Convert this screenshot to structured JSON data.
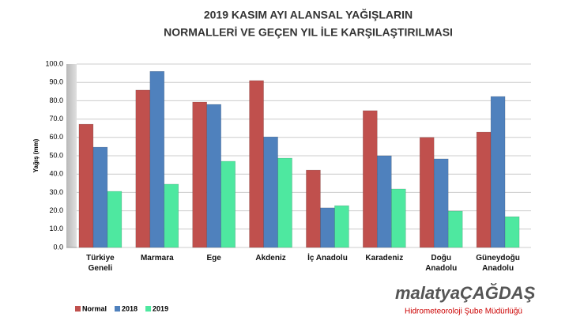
{
  "chart_data": {
    "type": "bar",
    "title": [
      "2019 KASIM AYI ALANSAL YAĞIŞLARIN",
      "NORMALLERİ VE GEÇEN YIL İLE KARŞILAŞTIRILMASI"
    ],
    "y_label": "Yağış (mm)",
    "categories": [
      "Türkiye\nGeneli",
      "Marmara",
      "Ege",
      "Akdeniz",
      "İç Anadolu",
      "Karadeniz",
      "Doğu\nAnadolu",
      "Güneydoğu\nAnadolu"
    ],
    "series": [
      {
        "name": "Normal",
        "color": "#c0504d",
        "values": [
          67.2,
          85.8,
          79.3,
          91.0,
          42.2,
          74.6,
          60.0,
          62.9
        ]
      },
      {
        "name": "2018",
        "color": "#4f81bd",
        "values": [
          54.7,
          96.0,
          78.0,
          60.3,
          21.6,
          50.0,
          48.3,
          82.3
        ]
      },
      {
        "name": "2019",
        "color": "#4ee8a0",
        "values": [
          30.6,
          34.5,
          47.0,
          48.7,
          22.8,
          31.9,
          19.8,
          16.8
        ]
      }
    ],
    "ylim": [
      0,
      100
    ],
    "yticks": [
      {
        "value": 0,
        "label": "0.0"
      },
      {
        "value": 10,
        "label": "10.0"
      },
      {
        "value": 20,
        "label": "20.0"
      },
      {
        "value": 30,
        "label": "30.0"
      },
      {
        "value": 40,
        "label": "40.0"
      },
      {
        "value": 50,
        "label": "50.0"
      },
      {
        "value": 60,
        "label": "60.0"
      },
      {
        "value": 70,
        "label": "70.0"
      },
      {
        "value": 80,
        "label": "80.0"
      },
      {
        "value": 90,
        "label": "90.0"
      },
      {
        "value": 100,
        "label": "100.0"
      }
    ],
    "grid": true,
    "legend": "bottom-left"
  },
  "watermark": {
    "brand": "malatyaÇAĞDAŞ",
    "caption": "Hidrometeoroloji Şube Müdürlüğü"
  }
}
